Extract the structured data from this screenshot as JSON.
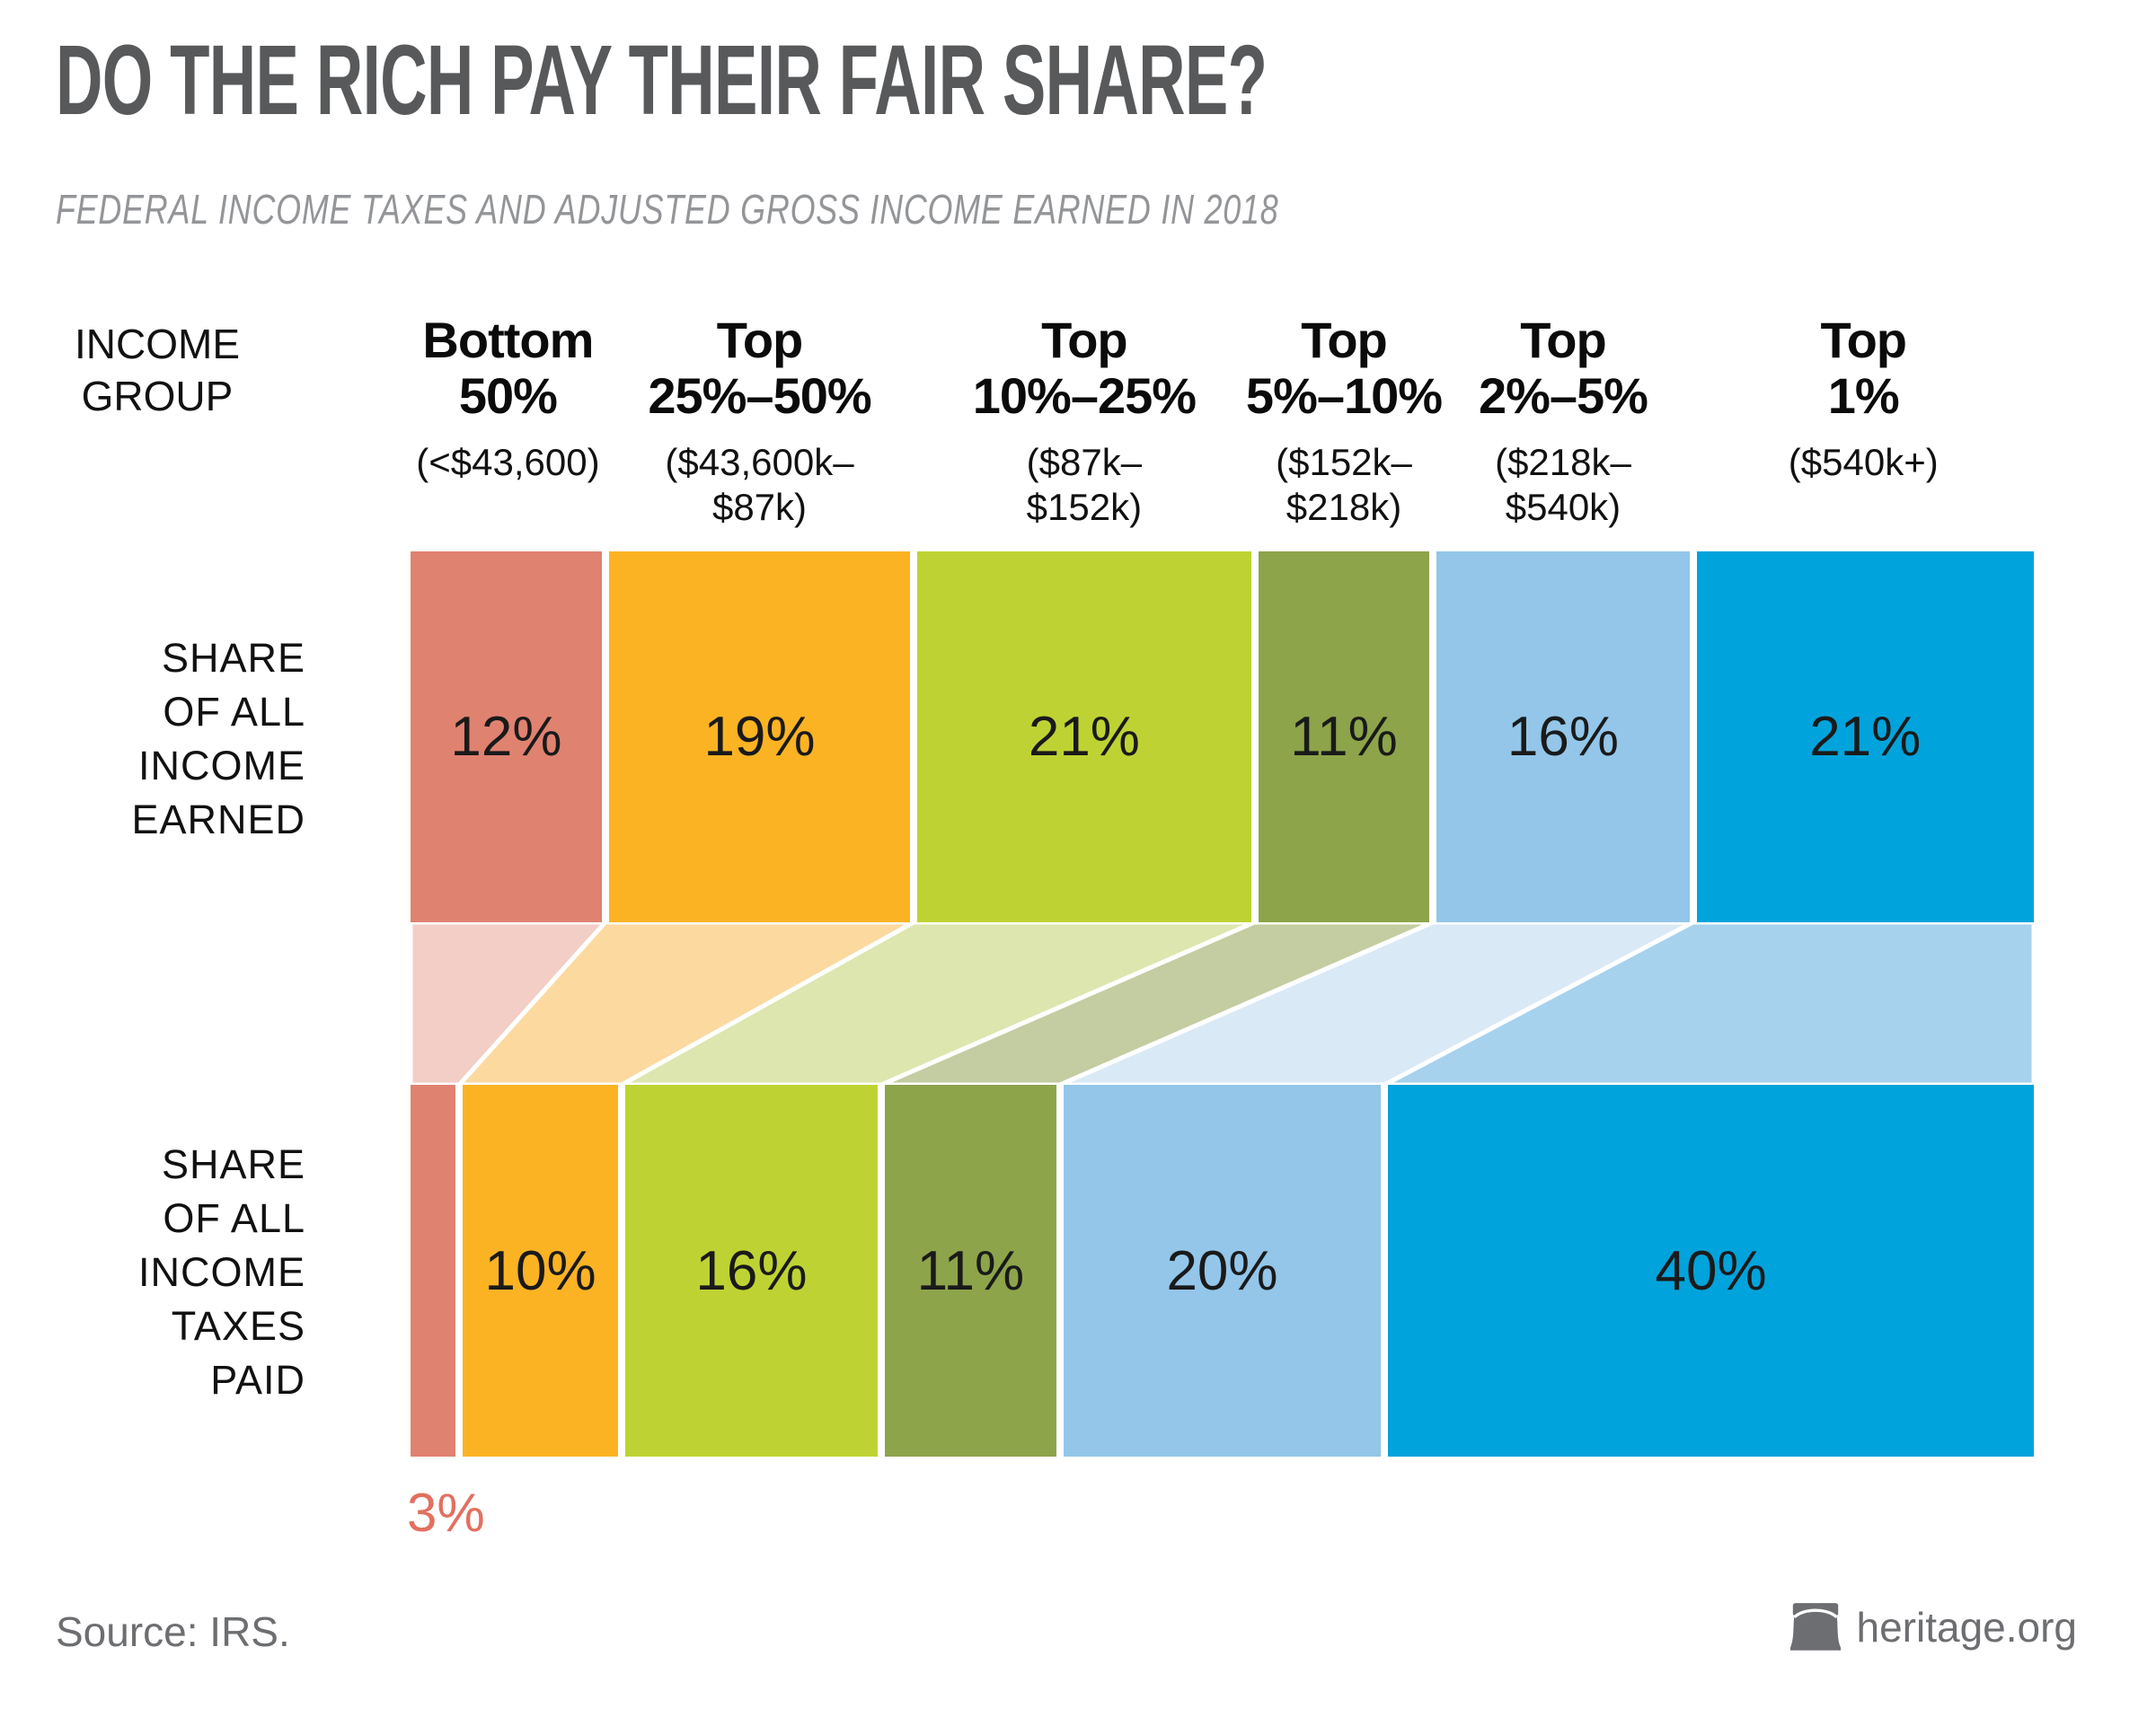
{
  "title": "DO THE RICH PAY THEIR FAIR SHARE?",
  "subtitle": "FEDERAL INCOME TAXES AND ADJUSTED GROSS INCOME EARNED IN 2018",
  "income_group_label_lines": [
    "INCOME",
    "GROUP"
  ],
  "row_labels": {
    "income_lines": [
      "SHARE",
      "OF ALL",
      "INCOME",
      "EARNED"
    ],
    "tax_lines": [
      "SHARE",
      "OF ALL",
      "INCOME",
      "TAXES",
      "PAID"
    ]
  },
  "footer": {
    "source": "Source: IRS.",
    "brand": "heritage.org",
    "brand_icon": "liberty-bell-icon"
  },
  "colors": {
    "title_gray": "#58595B",
    "subtitle_gray": "#939598",
    "footer_gray": "#6D6E71",
    "text_black": "#1a1a1a",
    "tax_outside_label_color": "#E2705F"
  },
  "chart_data": {
    "type": "bar",
    "variant": "paired 100% stacked horizontal bars with flow ribbons",
    "title": "DO THE RICH PAY THEIR FAIR SHARE?",
    "subtitle": "FEDERAL INCOME TAXES AND ADJUSTED GROSS INCOME EARNED IN 2018",
    "rows": [
      {
        "key": "income_share",
        "label": "SHARE OF ALL INCOME EARNED"
      },
      {
        "key": "tax_share",
        "label": "SHARE OF ALL INCOME TAXES PAID"
      }
    ],
    "unit": "%",
    "xlim": [
      0,
      100
    ],
    "groups": [
      {
        "name_lines": [
          "Bottom",
          "50%"
        ],
        "range_lines": [
          "(<$43,600)"
        ],
        "income_share": 12,
        "tax_share": 3,
        "color": "#E08270",
        "ribbon_color": "#F2CEC6",
        "tax_label_outside": true
      },
      {
        "name_lines": [
          "Top",
          "25%–50%"
        ],
        "range_lines": [
          "($43,600k–",
          "$87k)"
        ],
        "income_share": 19,
        "tax_share": 10,
        "color": "#FBB324",
        "ribbon_color": "#FCD99F",
        "tax_label_outside": false
      },
      {
        "name_lines": [
          "Top",
          "10%–25%"
        ],
        "range_lines": [
          "($87k–",
          "$152k)"
        ],
        "income_share": 21,
        "tax_share": 16,
        "color": "#BED333",
        "ribbon_color": "#DDE6AE",
        "tax_label_outside": false
      },
      {
        "name_lines": [
          "Top",
          "5%–10%"
        ],
        "range_lines": [
          "($152k–",
          "$218k)"
        ],
        "income_share": 11,
        "tax_share": 11,
        "color": "#8DA44A",
        "ribbon_color": "#C4CCA1",
        "tax_label_outside": false
      },
      {
        "name_lines": [
          "Top",
          "2%–5%"
        ],
        "range_lines": [
          "($218k–",
          "$540k)"
        ],
        "income_share": 16,
        "tax_share": 20,
        "color": "#93C6E9",
        "ribbon_color": "#DAE9F6",
        "tax_label_outside": false
      },
      {
        "name_lines": [
          "Top",
          "1%"
        ],
        "range_lines": [
          "($540k+)"
        ],
        "income_share": 21,
        "tax_share": 40,
        "color": "#00A3DB",
        "ribbon_color": "#A6D2EE",
        "tax_label_outside": false
      }
    ]
  }
}
